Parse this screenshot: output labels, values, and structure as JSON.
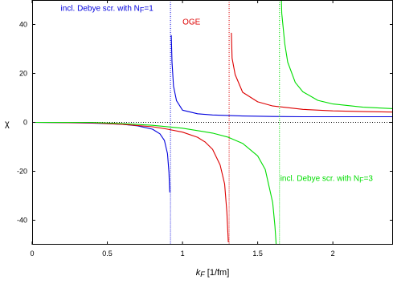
{
  "chart_data": {
    "type": "line",
    "title": "",
    "xlabel": {
      "main": "k",
      "sub": "F",
      "unit": "[1/fm]"
    },
    "ylabel": "χ",
    "xlim": [
      0,
      2.4
    ],
    "ylim": [
      -50,
      50
    ],
    "grid": false,
    "x_ticks": [
      {
        "value": 0,
        "label": "0"
      },
      {
        "value": 0.5,
        "label": "0.5"
      },
      {
        "value": 1,
        "label": "1"
      },
      {
        "value": 1.5,
        "label": "1.5"
      },
      {
        "value": 2,
        "label": "2"
      }
    ],
    "y_ticks": [
      {
        "value": -40,
        "label": "-40"
      },
      {
        "value": -20,
        "label": "-20"
      },
      {
        "value": 0,
        "label": "0"
      },
      {
        "value": 20,
        "label": "20"
      },
      {
        "value": 40,
        "label": "40"
      }
    ],
    "reference_lines": [
      {
        "axis": "y",
        "value": 0,
        "style": "dotted",
        "color": "#000000"
      }
    ],
    "series": [
      {
        "key": "blue",
        "name": "incl. Debye scr. with N",
        "name_sub": "F",
        "name_suffix": "=1",
        "color": "#0000dd",
        "pole": 0.92,
        "x": [
          0,
          0.2,
          0.4,
          0.6,
          0.7,
          0.8,
          0.85,
          0.88,
          0.9,
          0.91,
          0.915,
          0.925,
          0.93,
          0.94,
          0.96,
          1.0,
          1.1,
          1.2,
          1.4,
          1.6,
          1.8,
          2.0,
          2.2,
          2.4
        ],
        "y": [
          0,
          -0.1,
          -0.3,
          -0.8,
          -1.4,
          -2.8,
          -4.7,
          -7.4,
          -12.8,
          -20.3,
          -28.6,
          35.6,
          24.7,
          14.8,
          8.9,
          5.0,
          3.5,
          3.0,
          2.6,
          2.4,
          2.3,
          2.3,
          2.3,
          2.3
        ]
      },
      {
        "key": "red",
        "name": "OGE",
        "color": "#dd0000",
        "pole": 1.31,
        "x": [
          0,
          0.4,
          0.6,
          0.8,
          0.9,
          1.0,
          1.1,
          1.15,
          1.2,
          1.25,
          1.28,
          1.295,
          1.305,
          1.325,
          1.33,
          1.35,
          1.4,
          1.5,
          1.6,
          1.8,
          2.0,
          2.2,
          2.4
        ],
        "y": [
          0,
          -0.2,
          -0.8,
          -1.8,
          -2.8,
          -4.0,
          -6.1,
          -8.0,
          -11.0,
          -17.4,
          -25.2,
          -36.7,
          -49.0,
          36.6,
          26.2,
          19.5,
          12.3,
          8.4,
          6.7,
          5.3,
          4.7,
          4.4,
          4.2
        ]
      },
      {
        "key": "green",
        "name": "incl. Debye scr. with N",
        "name_sub": "F",
        "name_suffix": "=3",
        "color": "#00dd00",
        "pole": 1.645,
        "x": [
          0,
          0.4,
          0.6,
          0.8,
          1.0,
          1.2,
          1.3,
          1.4,
          1.5,
          1.55,
          1.6,
          1.615,
          1.63,
          1.636,
          1.655,
          1.66,
          1.68,
          1.7,
          1.75,
          1.8,
          1.9,
          2.0,
          2.2,
          2.4
        ],
        "y": [
          0,
          0,
          -0.5,
          -1.2,
          -2.4,
          -4.4,
          -6.0,
          -8.6,
          -13.7,
          -19.2,
          -32.8,
          -42.5,
          -56.0,
          -60.0,
          56.0,
          44.5,
          32.2,
          24.6,
          16.3,
          12.5,
          9.0,
          7.5,
          6.2,
          5.6
        ]
      }
    ],
    "annotations": [
      {
        "series": "blue",
        "text": "incl. Debye scr. with N",
        "sub": "F",
        "suffix": "=1",
        "at": [
          0.19,
          45.5
        ]
      },
      {
        "series": "red",
        "text": "OGE",
        "at": [
          1.0,
          40.0
        ]
      },
      {
        "series": "green",
        "text": "incl. Debye scr. with N",
        "sub": "F",
        "suffix": "=3",
        "at": [
          1.65,
          -24.0
        ]
      }
    ]
  }
}
